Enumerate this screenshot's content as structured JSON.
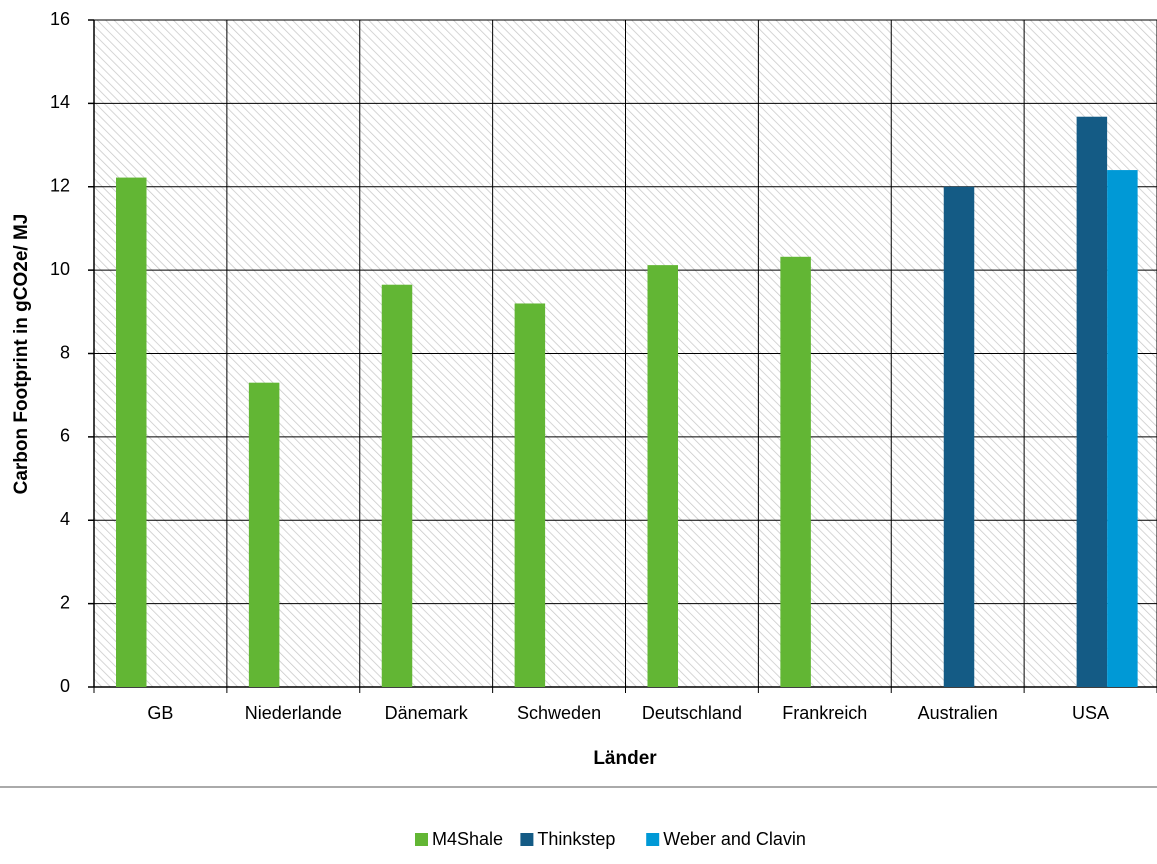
{
  "chart_data": {
    "type": "bar",
    "x_label": "Länder",
    "y_label": "Carbon Footprint in gCO2e/ MJ",
    "categories": [
      "GB",
      "Niederlande",
      "Dänemark",
      "Schweden",
      "Deutschland",
      "Frankreich",
      "Australien",
      "USA"
    ],
    "series": [
      {
        "name": "M4Shale",
        "color": "#62b634",
        "values": [
          12.22,
          7.3,
          9.65,
          9.2,
          10.12,
          10.32,
          null,
          null
        ]
      },
      {
        "name": "Thinkstep",
        "color": "#145b85",
        "values": [
          null,
          null,
          null,
          null,
          null,
          null,
          12.0,
          13.68
        ]
      },
      {
        "name": "Weber and Clavin",
        "color": "#0099d6",
        "values": [
          null,
          null,
          null,
          null,
          null,
          null,
          null,
          12.4
        ]
      }
    ],
    "ylim": [
      0,
      16
    ],
    "yticks": [
      0,
      2,
      4,
      6,
      8,
      10,
      12,
      14,
      16
    ],
    "grid": true
  }
}
